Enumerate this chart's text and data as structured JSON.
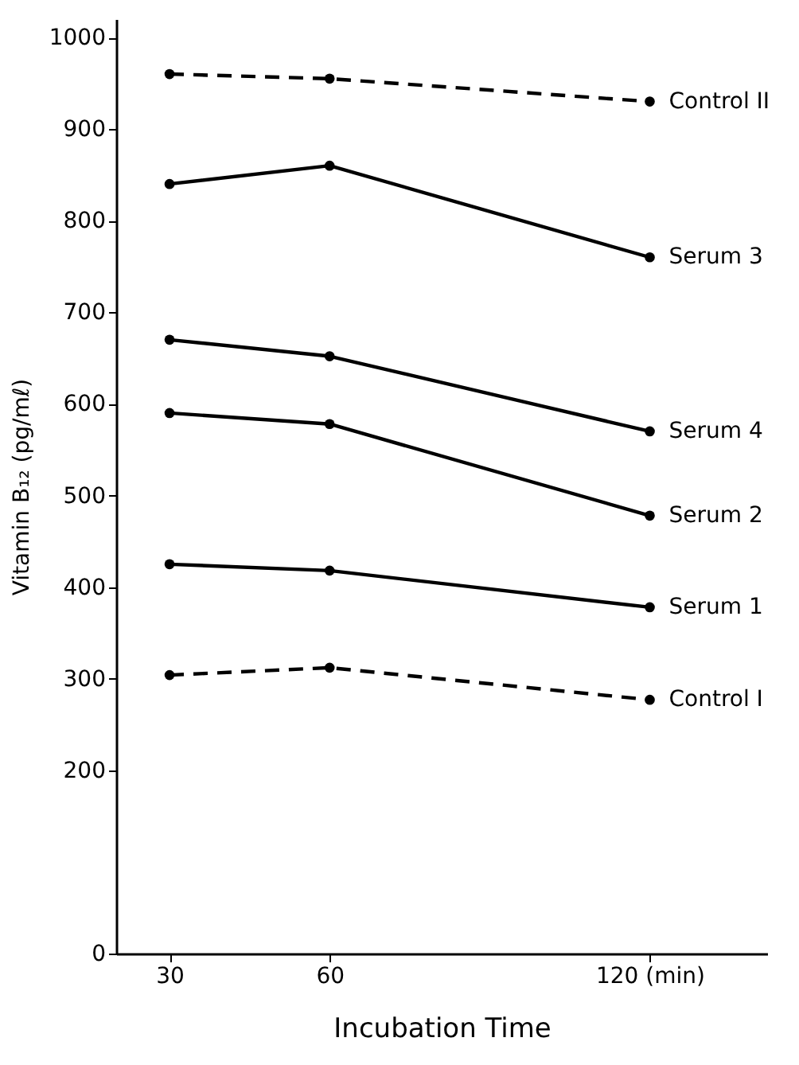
{
  "chart_data": {
    "type": "line",
    "xlabel": "Incubation Time",
    "ylabel": "Vitamin B₁₂ (pg/mℓ)",
    "x": [
      30,
      60,
      120
    ],
    "series": [
      {
        "name": "Control II",
        "color": "#000000",
        "line_style": "dashed",
        "values": [
          960,
          955,
          930
        ]
      },
      {
        "name": "Serum 3",
        "color": "#000000",
        "line_style": "solid",
        "values": [
          840,
          860,
          760
        ]
      },
      {
        "name": "Serum 4",
        "color": "#000000",
        "line_style": "solid",
        "values": [
          670,
          652,
          570
        ]
      },
      {
        "name": "Serum 2",
        "color": "#000000",
        "line_style": "solid",
        "values": [
          590,
          578,
          478
        ]
      },
      {
        "name": "Serum 1",
        "color": "#000000",
        "line_style": "solid",
        "values": [
          425,
          418,
          378
        ]
      },
      {
        "name": "Control I",
        "color": "#000000",
        "line_style": "dashed",
        "values": [
          304,
          312,
          277
        ]
      }
    ],
    "xlim": [
      20,
      142
    ],
    "xticks": [
      30,
      60,
      {
        "value": 120,
        "label": "120 (min)"
      }
    ],
    "ylim": [
      0,
      1020
    ],
    "yticks": [
      0,
      200,
      300,
      400,
      500,
      600,
      700,
      800,
      900,
      1000
    ],
    "marker": "circle",
    "grid": false
  }
}
